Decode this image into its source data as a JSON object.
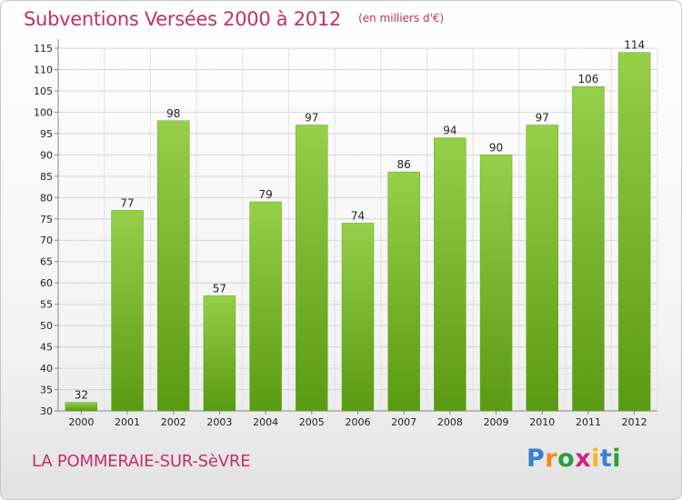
{
  "header": {
    "title": "Subventions Versées 2000 à 2012",
    "subtitle": "(en milliers d'€)"
  },
  "footer": {
    "commune": "LA POMMERAIE-SUR-SèVRE",
    "logo_letters": [
      "P",
      "r",
      "o",
      "x",
      "i",
      "t",
      "i"
    ],
    "logo_colors": [
      "#3a7fd0",
      "#f08a1c",
      "#2f9c3f",
      "#d4267a",
      "#f2b81e",
      "#3a7fd0",
      "#2f9c3f"
    ]
  },
  "colors": {
    "accent": "#c0306a",
    "bar_top": "#96cf4a",
    "bar_bottom": "#5a9a12"
  },
  "chart_data": {
    "type": "bar",
    "categories": [
      "2000",
      "2001",
      "2002",
      "2003",
      "2004",
      "2005",
      "2006",
      "2007",
      "2008",
      "2009",
      "2010",
      "2011",
      "2012"
    ],
    "values": [
      32,
      77,
      98,
      57,
      79,
      97,
      74,
      86,
      94,
      90,
      97,
      106,
      114
    ],
    "ylim": [
      30,
      115
    ],
    "yticks": [
      30,
      35,
      40,
      45,
      50,
      55,
      60,
      65,
      70,
      75,
      80,
      85,
      90,
      95,
      100,
      105,
      110,
      115
    ],
    "grid": true,
    "data_labels": true
  }
}
